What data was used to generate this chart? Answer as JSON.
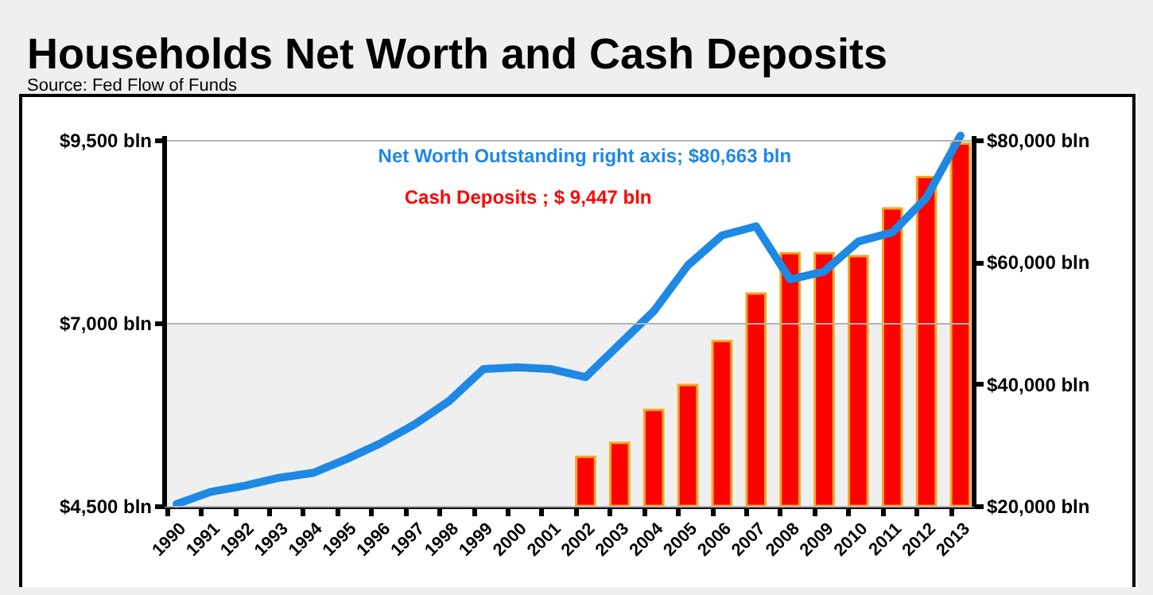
{
  "chart_data": {
    "type": "bar",
    "title": "Households Net Worth and Cash Deposits",
    "subtitle": "Source:  Fed Flow of Funds",
    "categories": [
      "1990",
      "1991",
      "1992",
      "1993",
      "1994",
      "1995",
      "1996",
      "1997",
      "1998",
      "1999",
      "2000",
      "2001",
      "2002",
      "2003",
      "2004",
      "2005",
      "2006",
      "2007",
      "2008",
      "2009",
      "2010",
      "2011",
      "2012",
      "2013"
    ],
    "series": [
      {
        "name": "Cash Deposits ;  $ 9,447 bln",
        "color": "#ff0000",
        "values": [
          null,
          null,
          null,
          null,
          null,
          null,
          null,
          null,
          null,
          null,
          null,
          null,
          5170,
          5360,
          5810,
          6150,
          6750,
          7400,
          7950,
          7950,
          7910,
          8560,
          8990,
          9447
        ]
      },
      {
        "name": "Net Worth Outstanding right axis; $80,663 bln",
        "type": "line",
        "axis": "y2",
        "color": "#1e88e5",
        "values": [
          20300,
          22300,
          23300,
          24600,
          25400,
          27700,
          30300,
          33400,
          37200,
          42400,
          42700,
          42400,
          41100,
          46500,
          51900,
          59400,
          64300,
          65800,
          57100,
          58400,
          63300,
          64800,
          70500,
          80663
        ]
      }
    ],
    "ylim": [
      4500,
      9560
    ],
    "yticks": [
      {
        "value": 4500,
        "label": "$4,500 bln"
      },
      {
        "value": 7000,
        "label": "$7,000 bln"
      },
      {
        "value": 9500,
        "label": "$9,500 bln"
      }
    ],
    "y2lim": [
      20000,
      80720
    ],
    "y2ticks": [
      {
        "value": 20000,
        "label": "$20,000 bln"
      },
      {
        "value": 40000,
        "label": "$40,000 bln"
      },
      {
        "value": 60000,
        "label": "$60,000 bln"
      },
      {
        "value": 80000,
        "label": "$80,000 bln"
      }
    ],
    "bands": [
      {
        "axis": "y",
        "from": 4500,
        "to": 7000,
        "color": "#efefef"
      }
    ],
    "grid": "y",
    "legend": "top"
  }
}
